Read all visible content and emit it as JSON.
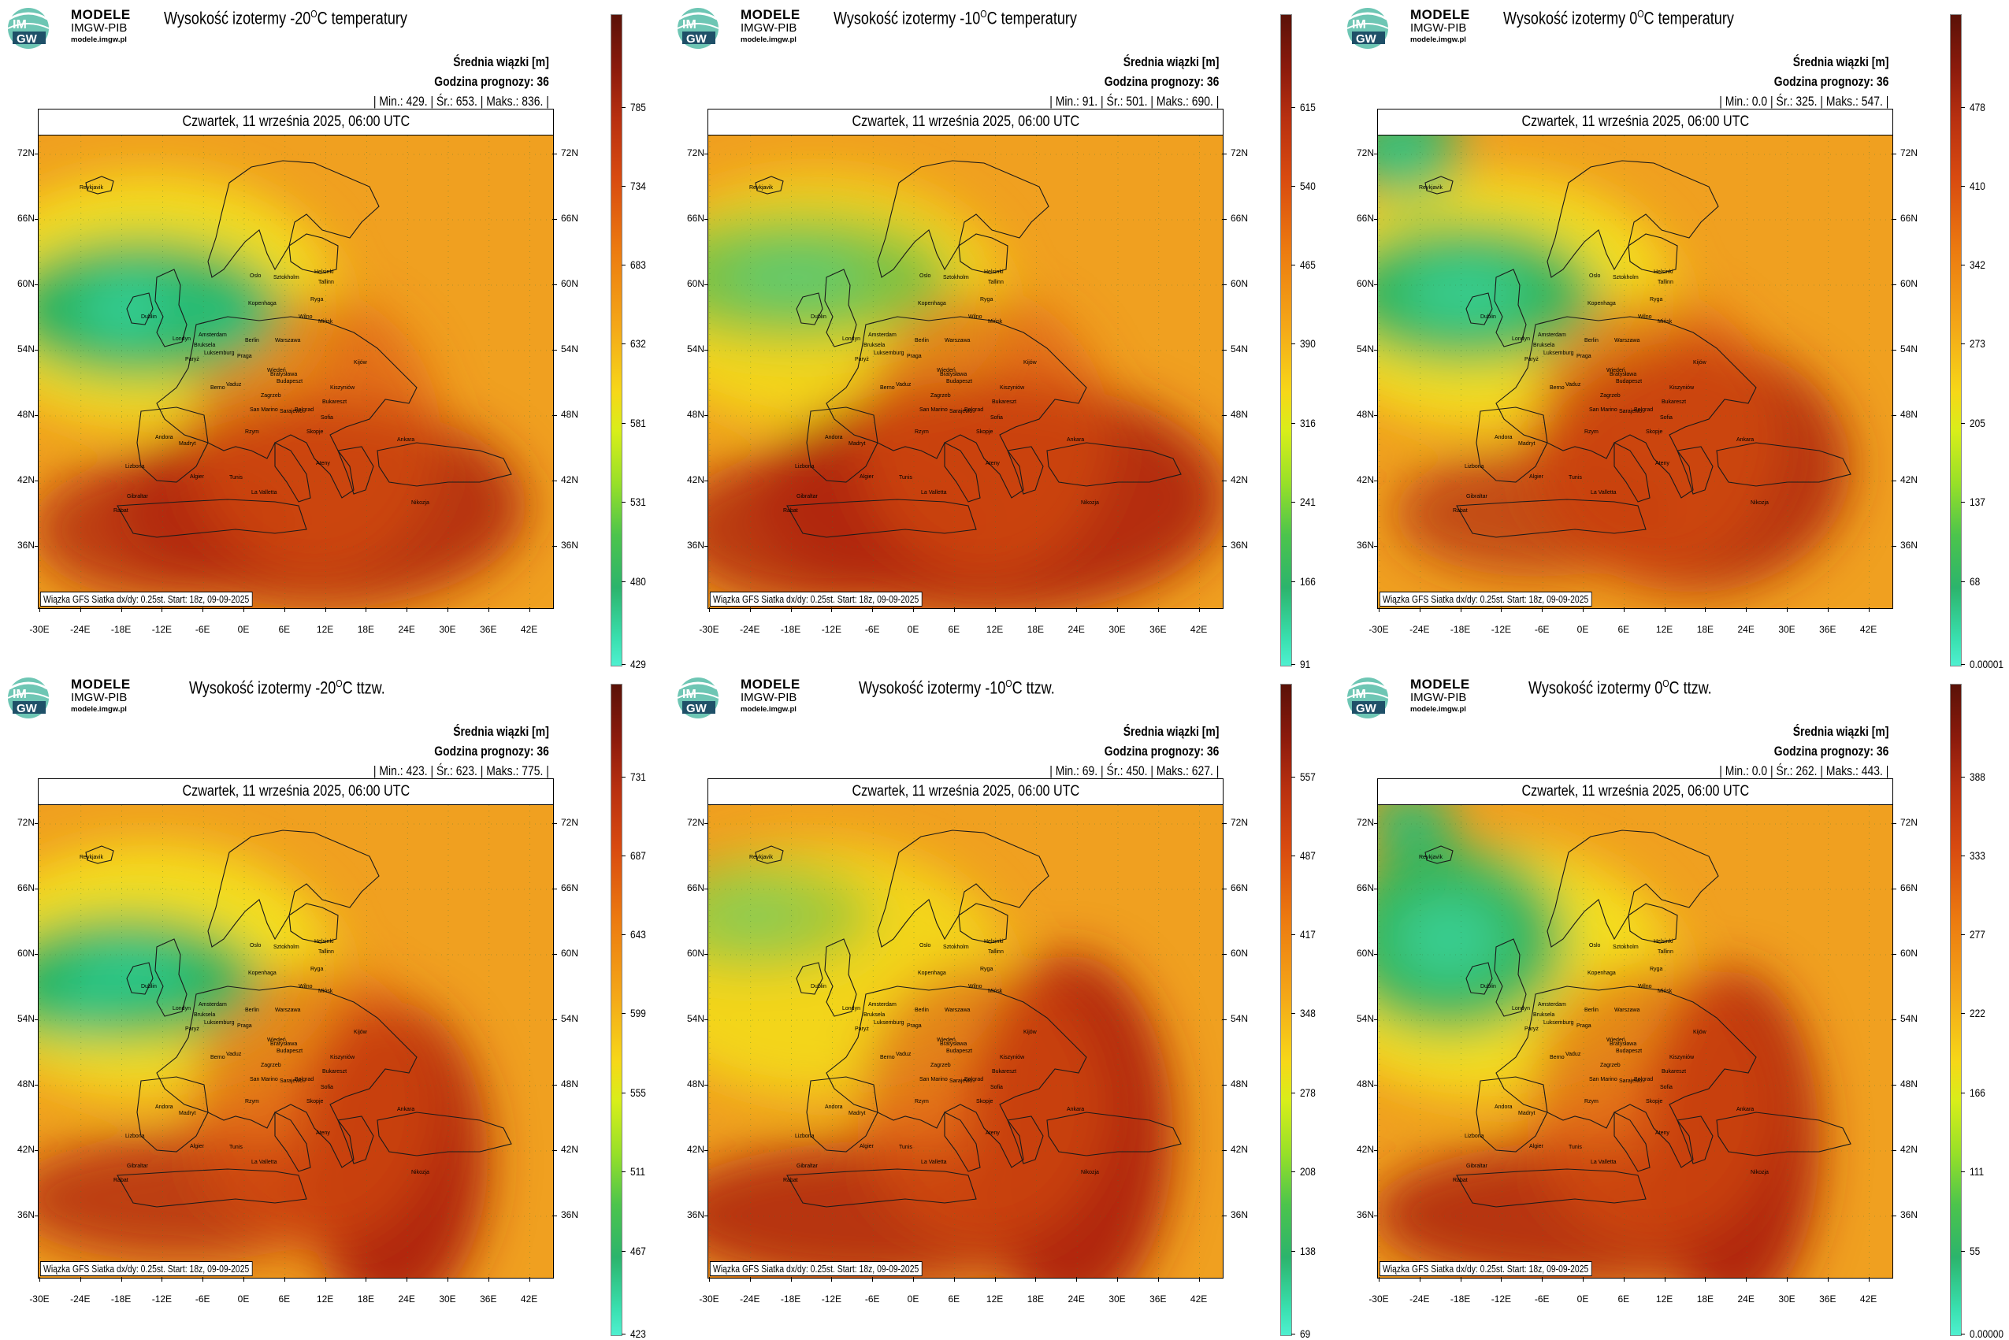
{
  "brand": {
    "main": "MODELE",
    "sub": "IMGW-PIB",
    "url": "modele.imgw.pl",
    "logo_text_top": "IM",
    "logo_text_bottom": "GW"
  },
  "common": {
    "subtitle": "Średnia wiązki [m]",
    "forecast_hour": "Godzina prognozy: 36",
    "date": "Czwartek, 11 września 2025, 06:00 UTC",
    "credit": "Wiązka GFS Siatka dx/dy: 0.25st. Start: 18z, 09-09-2025",
    "lat_labels": [
      "72N",
      "66N",
      "60N",
      "54N",
      "48N",
      "42N",
      "36N"
    ],
    "lon_labels": [
      "-30E",
      "-24E",
      "-18E",
      "-12E",
      "-6E",
      "0E",
      "6E",
      "12E",
      "18E",
      "24E",
      "30E",
      "36E",
      "42E"
    ],
    "cities": [
      "Oslo",
      "Sztokholm",
      "Helsinki",
      "Tallinn",
      "Ryga",
      "Wilno",
      "Mińsk",
      "Kopenhaga",
      "Dublin",
      "Londyn",
      "Amsterdam",
      "Bruksela",
      "Luksemburg",
      "Paryż",
      "Berlin",
      "Warszawa",
      "Praga",
      "Wiedeń",
      "Budapeszt",
      "Bratysława",
      "Berno",
      "Vaduz",
      "Kiszyniów",
      "Kijów",
      "Bukareszt",
      "Sofia",
      "Belgrad",
      "Zagrzeb",
      "Sarajewo",
      "San Marino",
      "Rzym",
      "Ateny",
      "Skopje",
      "Ankara",
      "Andora",
      "Madryt",
      "Lizbona",
      "Rabat",
      "Algier",
      "Tunis",
      "La Valletta",
      "Nikozja",
      "Gibraltar",
      "Reykjavik"
    ]
  },
  "colors": {
    "brand_green": "#1b6c40",
    "logo_teal": "#6ec6b4",
    "frame": "#000000"
  },
  "panels": [
    {
      "title_prefix": "Wysokość izotermy -20",
      "title_suffix": "C temperatury",
      "sup": "O",
      "stats": "| Min.:    429. | Śr.:    653. | Maks.:    836. |",
      "cbar_labels": [
        "785",
        "734",
        "683",
        "632",
        "581",
        "531",
        "480",
        "429"
      ]
    },
    {
      "title_prefix": "Wysokość izotermy -10",
      "title_suffix": "C temperatury",
      "sup": "O",
      "stats": "| Min.:    91. | Śr.:    501. | Maks.:    690. |",
      "cbar_labels": [
        "615",
        "540",
        "465",
        "390",
        "316",
        "241",
        "166",
        "91"
      ]
    },
    {
      "title_prefix": "Wysokość izotermy 0",
      "title_suffix": "C temperatury",
      "sup": "O",
      "stats": "| Min.:    0.0 | Śr.:    325. | Maks.:    547. |",
      "cbar_labels": [
        "478",
        "410",
        "342",
        "273",
        "205",
        "137",
        "68",
        "0.00001"
      ]
    },
    {
      "title_prefix": "Wysokość izotermy -20",
      "title_suffix": "C ttzw.",
      "sup": "O",
      "stats": "| Min.:    423. | Śr.:    623. | Maks.:    775. |",
      "cbar_labels": [
        "731",
        "687",
        "643",
        "599",
        "555",
        "511",
        "467",
        "423"
      ]
    },
    {
      "title_prefix": "Wysokość izotermy -10",
      "title_suffix": "C ttzw.",
      "sup": "O",
      "stats": "| Min.:    69. | Śr.:    450. | Maks.:    627. |",
      "cbar_labels": [
        "557",
        "487",
        "417",
        "348",
        "278",
        "208",
        "138",
        "69"
      ]
    },
    {
      "title_prefix": "Wysokość izotermy 0",
      "title_suffix": "C ttzw.",
      "sup": "O",
      "stats": "| Min.:    0.0 | Śr.:    262. | Maks.:    443. |",
      "cbar_labels": [
        "388",
        "333",
        "277",
        "222",
        "166",
        "111",
        "55",
        "0.00000"
      ]
    }
  ]
}
